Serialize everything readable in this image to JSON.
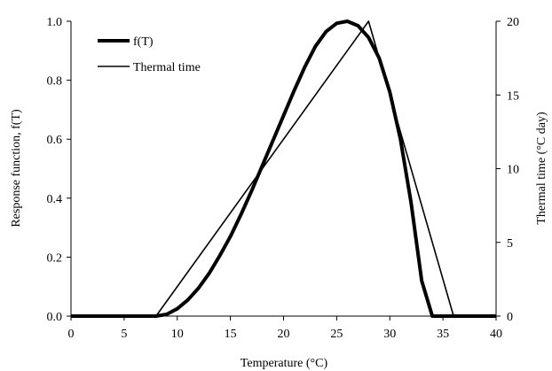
{
  "chart_data": {
    "type": "line",
    "title": "",
    "xlabel": "Temperature (°C)",
    "ylabel": "Response function, f(T)",
    "y2label": "Thermal time (°C day)",
    "xlim": [
      0,
      40
    ],
    "ylim": [
      0,
      1
    ],
    "y2lim": [
      0,
      20
    ],
    "xticks": [
      0,
      5,
      10,
      15,
      20,
      25,
      30,
      35,
      40
    ],
    "yticks": [
      0,
      0.2,
      0.4,
      0.6,
      0.8,
      1
    ],
    "y2ticks": [
      0,
      5,
      10,
      15,
      20
    ],
    "ytick_labels": [
      "0.0",
      "0.2",
      "0.4",
      "0.6",
      "0.8",
      "1.0"
    ],
    "grid": false,
    "legend_position": "top-left",
    "series": [
      {
        "name": "f(T)",
        "axis": "left",
        "color": "#000000",
        "style": "thick",
        "x": [
          0,
          8,
          9,
          10,
          11,
          12,
          13,
          14,
          15,
          16,
          17,
          18,
          19,
          20,
          21,
          22,
          23,
          24,
          25,
          26,
          27,
          28,
          29,
          30,
          31,
          32,
          33,
          34,
          35,
          36,
          37,
          38,
          39,
          40
        ],
        "y": [
          0,
          0,
          0.006,
          0.025,
          0.055,
          0.095,
          0.145,
          0.205,
          0.27,
          0.345,
          0.425,
          0.51,
          0.595,
          0.68,
          0.765,
          0.845,
          0.915,
          0.965,
          0.993,
          1.0,
          0.985,
          0.945,
          0.875,
          0.76,
          0.6,
          0.385,
          0.12,
          0,
          0,
          0,
          0,
          0,
          0,
          0
        ],
        "x_points_note": ""
      },
      {
        "name": "Thermal time",
        "axis": "right",
        "color": "#000000",
        "style": "thin",
        "x": [
          0,
          8,
          28,
          36,
          40
        ],
        "y": [
          0,
          0,
          20,
          0,
          0
        ]
      }
    ]
  }
}
